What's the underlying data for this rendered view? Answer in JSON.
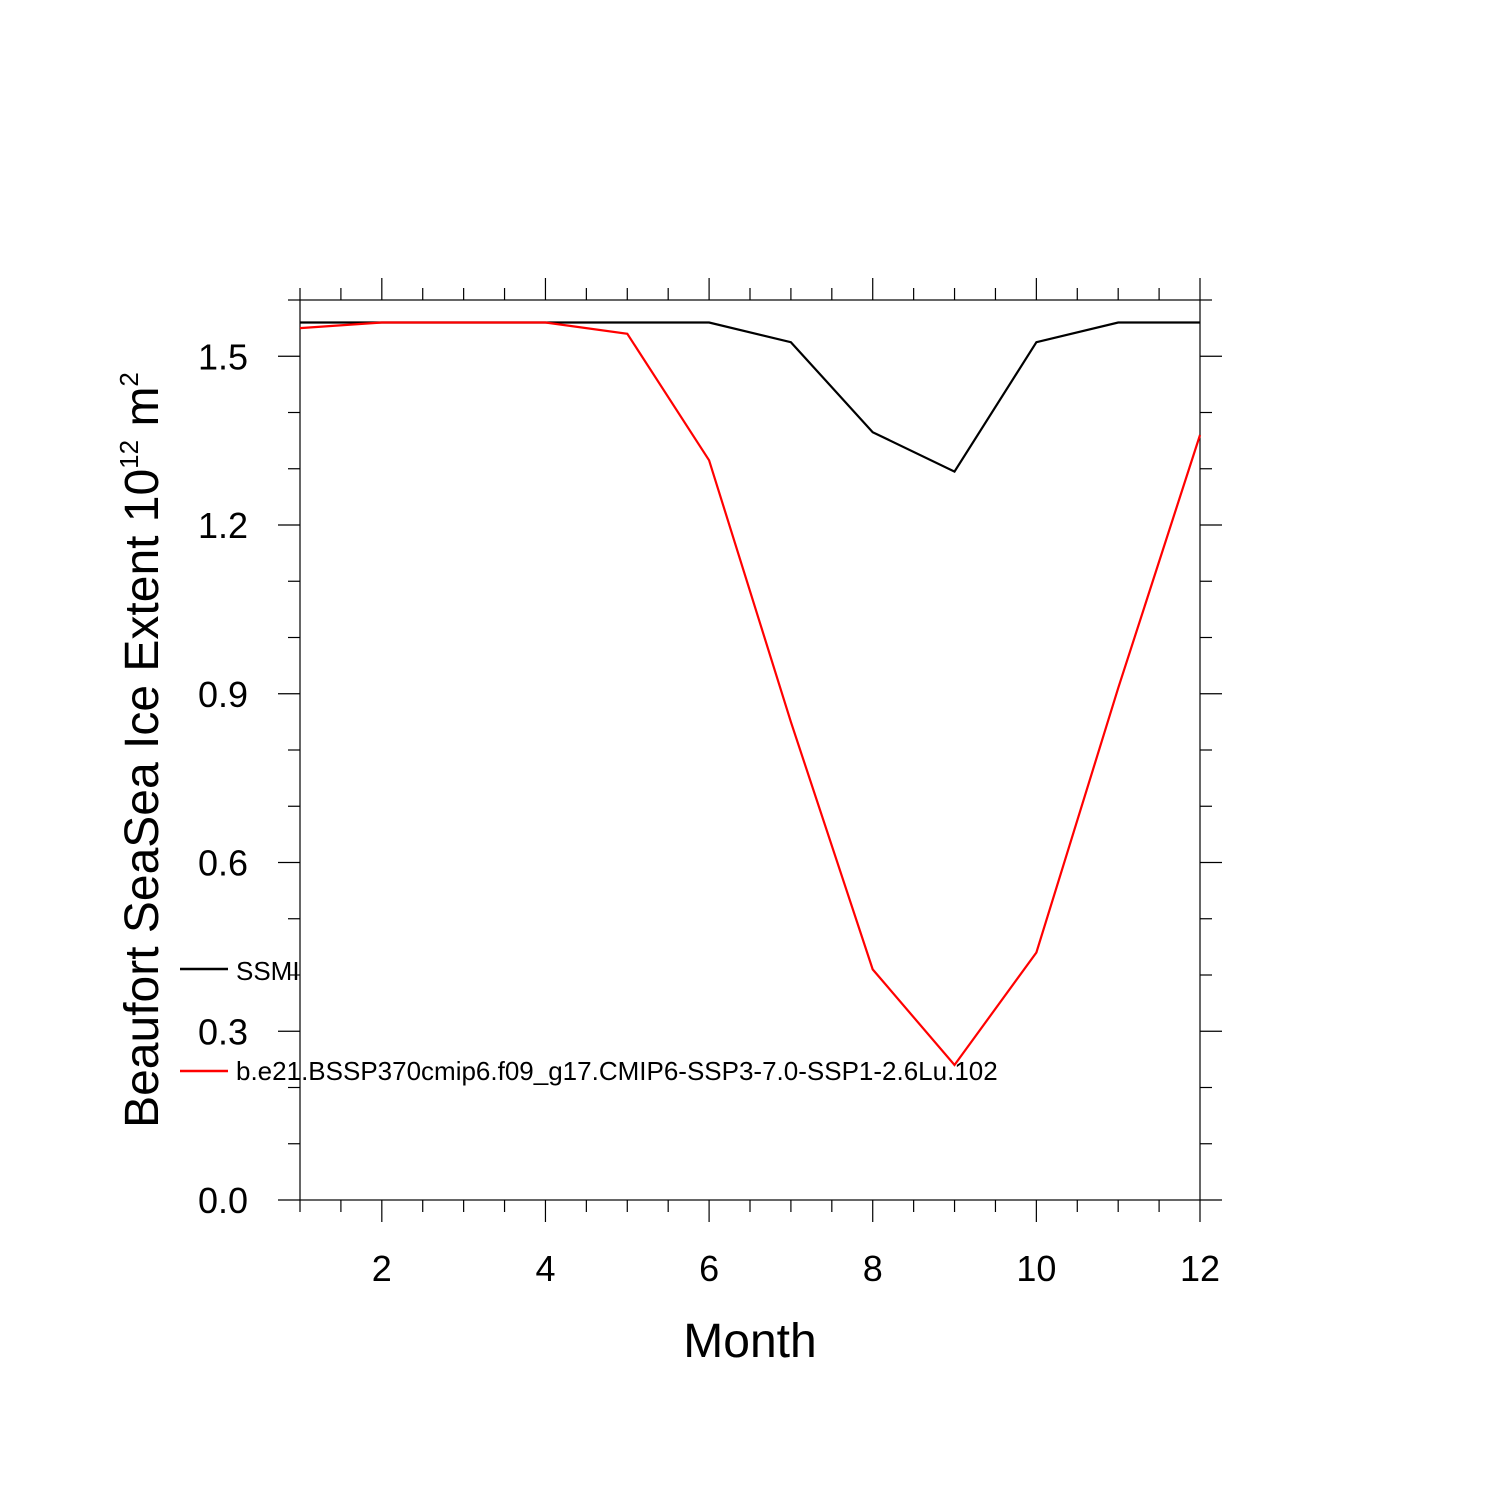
{
  "chart_data": {
    "type": "line",
    "x": [
      1,
      2,
      3,
      4,
      5,
      6,
      7,
      8,
      9,
      10,
      11,
      12
    ],
    "series": [
      {
        "name": "SSMI",
        "color": "#000000",
        "values": [
          1.56,
          1.56,
          1.56,
          1.56,
          1.56,
          1.56,
          1.525,
          1.365,
          1.295,
          1.525,
          1.56,
          1.56
        ]
      },
      {
        "name": "b.e21.BSSP370cmip6.f09_g17.CMIP6-SSP3-7.0-SSP1-2.6Lu.102",
        "color": "#ff0000",
        "values": [
          1.55,
          1.56,
          1.56,
          1.56,
          1.54,
          1.315,
          0.85,
          0.41,
          0.24,
          0.44,
          0.91,
          1.36
        ]
      }
    ],
    "xlabel": "Month",
    "ylabel_main": "Beaufort SeaSea Ice Extent 10",
    "ylabel_sup": "12",
    "ylabel_unit": " m",
    "ylabel_unit_sup": "2",
    "xlim": [
      1,
      12
    ],
    "ylim": [
      0,
      1.6
    ],
    "xticks": [
      2,
      4,
      6,
      8,
      10,
      12
    ],
    "xtick_labels": [
      "2",
      "4",
      "6",
      "8",
      "10",
      "12"
    ],
    "yticks": [
      0,
      0.3,
      0.6,
      0.9,
      1.2,
      1.5
    ],
    "ytick_labels": [
      "0.0",
      "0.3",
      "0.6",
      "0.9",
      "1.2",
      "1.5"
    ],
    "grid": false,
    "legend_position": "left-bottom"
  }
}
